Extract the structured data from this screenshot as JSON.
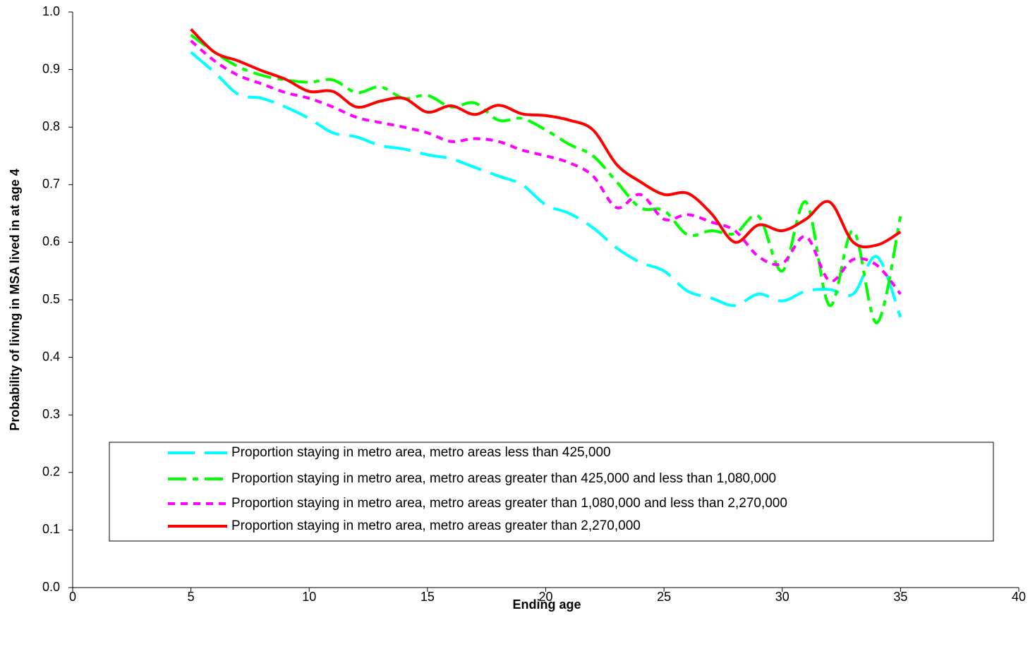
{
  "chart_data": {
    "type": "line",
    "xlabel": "Ending age",
    "ylabel": "Probability of living in MSA lived in at age 4",
    "x": [
      5,
      6,
      7,
      8,
      9,
      10,
      11,
      12,
      13,
      14,
      15,
      16,
      17,
      18,
      19,
      20,
      21,
      22,
      23,
      24,
      25,
      26,
      27,
      28,
      29,
      30,
      31,
      32,
      33,
      34,
      35
    ],
    "series": [
      {
        "name": "Proportion staying in metro area, metro areas less than 425,000",
        "color": "#00ffff",
        "values": [
          0.93,
          0.895,
          0.857,
          0.85,
          0.835,
          0.815,
          0.79,
          0.783,
          0.768,
          0.762,
          0.752,
          0.745,
          0.73,
          0.715,
          0.7,
          0.665,
          0.65,
          0.625,
          0.59,
          0.565,
          0.55,
          0.515,
          0.503,
          0.49,
          0.51,
          0.498,
          0.515,
          0.518,
          0.51,
          0.575,
          0.47
        ]
      },
      {
        "name": "Proportion staying in metro area, metro areas greater than 425,000 and less than 1,080,000",
        "color": "#00ff00",
        "values": [
          0.96,
          0.93,
          0.905,
          0.89,
          0.882,
          0.878,
          0.882,
          0.86,
          0.87,
          0.85,
          0.855,
          0.835,
          0.842,
          0.812,
          0.815,
          0.795,
          0.77,
          0.75,
          0.705,
          0.66,
          0.655,
          0.613,
          0.62,
          0.615,
          0.645,
          0.55,
          0.67,
          0.49,
          0.62,
          0.46,
          0.645
        ]
      },
      {
        "name": "Proportion staying in metro area, metro areas greater than 1,080,000 and less than 2,270,000",
        "color": "#ff00ff",
        "values": [
          0.95,
          0.915,
          0.89,
          0.875,
          0.86,
          0.85,
          0.835,
          0.817,
          0.808,
          0.8,
          0.79,
          0.775,
          0.78,
          0.775,
          0.76,
          0.75,
          0.738,
          0.715,
          0.66,
          0.683,
          0.64,
          0.648,
          0.635,
          0.62,
          0.575,
          0.563,
          0.61,
          0.533,
          0.57,
          0.56,
          0.51
        ]
      },
      {
        "name": "Proportion staying in metro area, metro areas greater than 2,270,000",
        "color": "#ff0000",
        "values": [
          0.97,
          0.93,
          0.915,
          0.898,
          0.883,
          0.862,
          0.862,
          0.835,
          0.845,
          0.85,
          0.826,
          0.837,
          0.822,
          0.838,
          0.823,
          0.82,
          0.812,
          0.795,
          0.735,
          0.705,
          0.683,
          0.685,
          0.65,
          0.6,
          0.63,
          0.62,
          0.64,
          0.67,
          0.6,
          0.595,
          0.618
        ]
      }
    ],
    "xlim": [
      0,
      40
    ],
    "xticks": [
      0,
      5,
      10,
      15,
      20,
      25,
      30,
      35,
      40
    ],
    "ylim": [
      0,
      1
    ],
    "yticks": [
      {
        "value": 0,
        "label": "0.0"
      },
      0.1,
      0.2,
      0.3,
      0.4,
      0.5,
      0.6,
      0.7,
      0.8,
      0.9,
      {
        "value": 1,
        "label": "1.0"
      }
    ]
  }
}
